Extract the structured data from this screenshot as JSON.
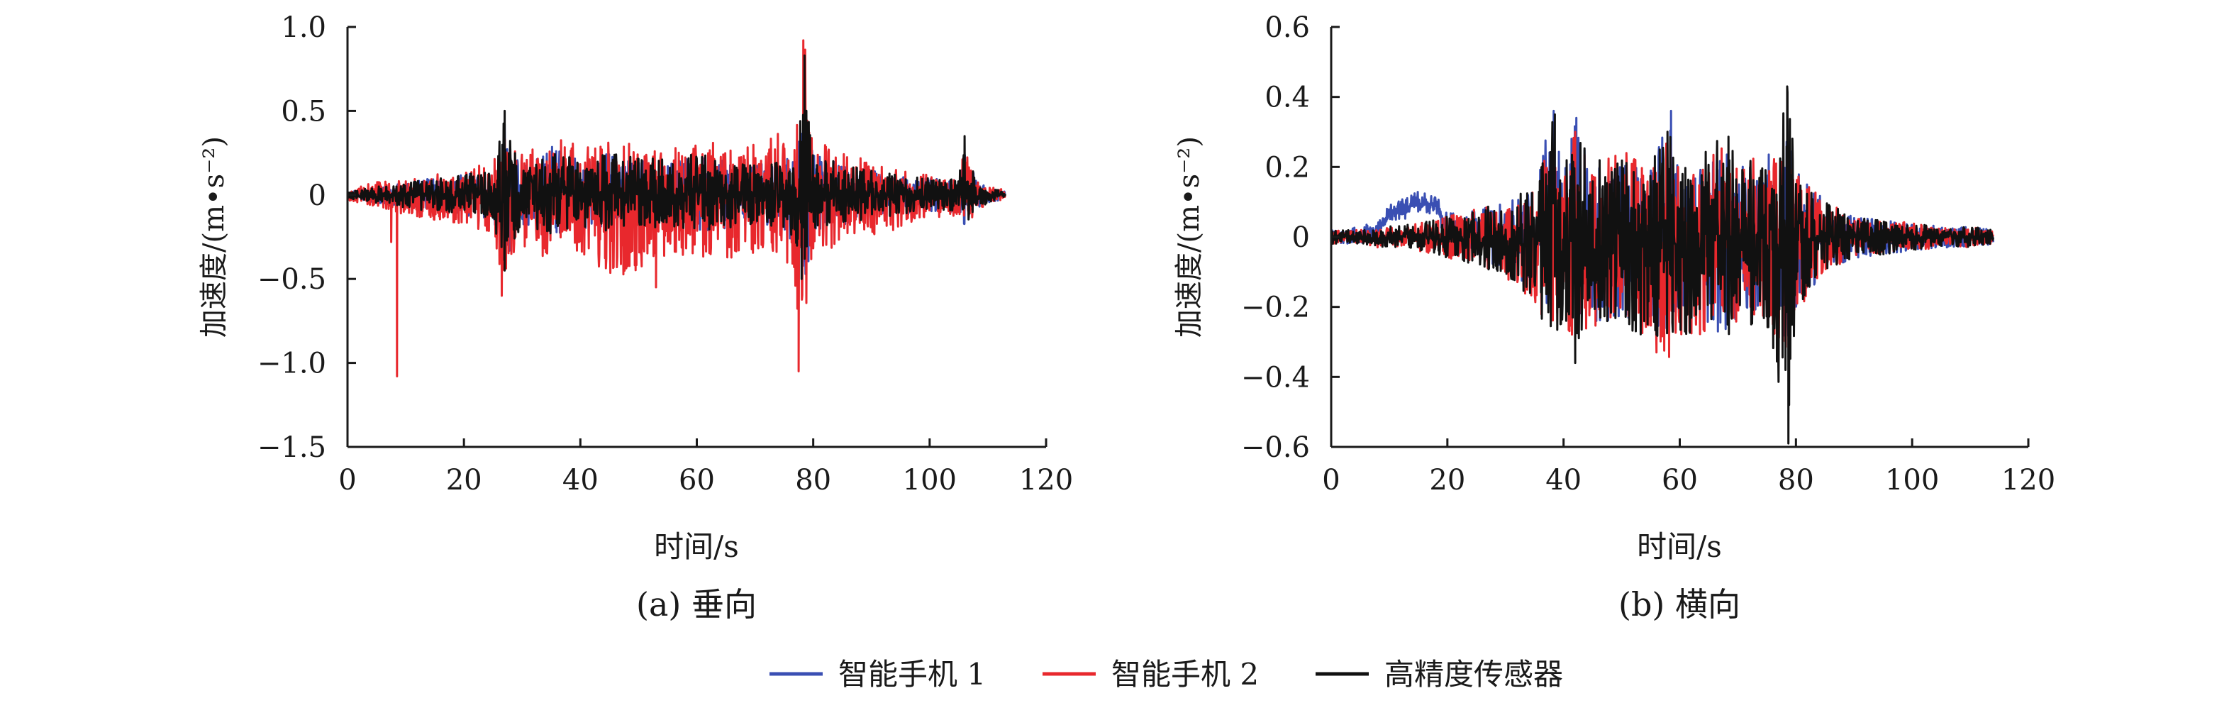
{
  "chart_data": [
    {
      "type": "line",
      "caption": "(a) 垂向",
      "xlabel": "时间/s",
      "ylabel": "加速度/(m•s⁻²)",
      "xlim": [
        0,
        120
      ],
      "ylim": [
        -1.5,
        1.0
      ],
      "xticks": [
        "0",
        "20",
        "40",
        "60",
        "80",
        "100",
        "120"
      ],
      "yticks": [
        "1.0",
        "0.5",
        "0",
        "−0.5",
        "−1.0",
        "−1.5"
      ],
      "grid": false,
      "envelopes": {
        "智能手机 1": {
          "t": [
            0,
            5,
            8,
            10,
            15,
            20,
            25,
            27,
            30,
            35,
            40,
            45,
            50,
            55,
            60,
            65,
            70,
            75,
            77.5,
            78.5,
            80,
            85,
            90,
            95,
            100,
            105,
            106,
            108,
            110,
            113
          ],
          "max": [
            0.02,
            0.05,
            0.06,
            0.08,
            0.1,
            0.12,
            0.15,
            0.4,
            0.18,
            0.3,
            0.2,
            0.25,
            0.2,
            0.22,
            0.25,
            0.2,
            0.18,
            0.2,
            0.3,
            0.6,
            0.25,
            0.2,
            0.15,
            0.12,
            0.1,
            0.1,
            0.3,
            0.08,
            0.05,
            0.02
          ],
          "min": [
            -0.02,
            -0.05,
            -0.06,
            -0.08,
            -0.1,
            -0.12,
            -0.15,
            -0.4,
            -0.18,
            -0.25,
            -0.2,
            -0.22,
            -0.2,
            -0.22,
            -0.22,
            -0.2,
            -0.18,
            -0.2,
            -0.35,
            -0.55,
            -0.22,
            -0.18,
            -0.14,
            -0.12,
            -0.1,
            -0.1,
            -0.2,
            -0.08,
            -0.05,
            -0.02
          ]
        },
        "智能手机 2": {
          "t": [
            0,
            5,
            8,
            10,
            15,
            20,
            25,
            27,
            30,
            35,
            40,
            45,
            50,
            55,
            60,
            65,
            70,
            75,
            77.5,
            78.5,
            80,
            85,
            90,
            95,
            100,
            105,
            106,
            108,
            110,
            113
          ],
          "max": [
            0.03,
            0.08,
            0.08,
            0.1,
            0.12,
            0.15,
            0.2,
            0.45,
            0.25,
            0.35,
            0.3,
            0.32,
            0.3,
            0.3,
            0.35,
            0.3,
            0.3,
            0.4,
            0.5,
            0.92,
            0.35,
            0.25,
            0.2,
            0.15,
            0.12,
            0.1,
            0.3,
            0.08,
            0.05,
            0.03
          ],
          "min": [
            -0.03,
            -0.08,
            -0.1,
            -0.12,
            -0.15,
            -0.18,
            -0.25,
            -0.6,
            -0.3,
            -0.4,
            -0.35,
            -0.5,
            -0.45,
            -0.4,
            -0.4,
            -0.38,
            -0.35,
            -0.45,
            -0.7,
            -0.75,
            -0.35,
            -0.3,
            -0.25,
            -0.2,
            -0.15,
            -0.12,
            -0.2,
            -0.1,
            -0.05,
            -0.03
          ]
        },
        "高精度传感器": {
          "t": [
            0,
            5,
            8,
            10,
            15,
            20,
            25,
            27,
            30,
            35,
            40,
            45,
            50,
            55,
            60,
            65,
            70,
            75,
            77.5,
            78.5,
            80,
            85,
            90,
            95,
            100,
            105,
            106,
            108,
            110,
            113
          ],
          "max": [
            0.02,
            0.05,
            0.06,
            0.08,
            0.1,
            0.12,
            0.15,
            0.5,
            0.18,
            0.28,
            0.2,
            0.25,
            0.22,
            0.22,
            0.25,
            0.2,
            0.18,
            0.2,
            0.3,
            0.83,
            0.25,
            0.18,
            0.15,
            0.12,
            0.1,
            0.1,
            0.35,
            0.08,
            0.05,
            0.02
          ],
          "min": [
            -0.02,
            -0.05,
            -0.06,
            -0.08,
            -0.1,
            -0.12,
            -0.15,
            -0.45,
            -0.18,
            -0.25,
            -0.2,
            -0.22,
            -0.2,
            -0.22,
            -0.22,
            -0.2,
            -0.18,
            -0.2,
            -0.35,
            -0.5,
            -0.22,
            -0.18,
            -0.14,
            -0.12,
            -0.1,
            -0.1,
            -0.22,
            -0.08,
            -0.05,
            -0.02
          ]
        }
      },
      "spikes": {
        "智能手机 2": [
          [
            8.5,
            -1.08
          ],
          [
            7.5,
            -0.28
          ],
          [
            77.5,
            -1.05
          ],
          [
            78.3,
            0.92
          ],
          [
            26.5,
            -0.6
          ],
          [
            53,
            -0.55
          ]
        ],
        "高精度传感器": [
          [
            27,
            0.5
          ],
          [
            78.5,
            0.83
          ],
          [
            106,
            0.35
          ],
          [
            78,
            -0.5
          ],
          [
            27,
            -0.45
          ]
        ],
        "智能手机 1": [
          [
            27,
            0.42
          ]
        ]
      }
    },
    {
      "type": "line",
      "caption": "(b) 横向",
      "xlabel": "时间/s",
      "ylabel": "加速度/(m•s⁻²)",
      "xlim": [
        0,
        120
      ],
      "ylim": [
        -0.6,
        0.6
      ],
      "xticks": [
        "0",
        "20",
        "40",
        "60",
        "80",
        "100",
        "120"
      ],
      "yticks": [
        "0.6",
        "0.4",
        "0.2",
        "0",
        "−0.2",
        "−0.4",
        "−0.6"
      ],
      "grid": false,
      "envelopes": {
        "智能手机 1": {
          "t": [
            0,
            5,
            8,
            10,
            15,
            18,
            20,
            25,
            30,
            35,
            38,
            40,
            42,
            45,
            50,
            55,
            58,
            60,
            65,
            68,
            70,
            75,
            78.5,
            80,
            85,
            90,
            95,
            100,
            105,
            110,
            114
          ],
          "max": [
            0.02,
            0.03,
            0.05,
            0.09,
            0.13,
            0.12,
            0.08,
            0.08,
            0.1,
            0.15,
            0.35,
            0.2,
            0.35,
            0.2,
            0.25,
            0.2,
            0.35,
            0.2,
            0.22,
            0.32,
            0.2,
            0.25,
            0.3,
            0.2,
            0.1,
            0.06,
            0.05,
            0.04,
            0.03,
            0.03,
            0.02
          ],
          "min": [
            -0.02,
            -0.02,
            0.0,
            0.04,
            0.06,
            0.06,
            -0.05,
            -0.05,
            -0.1,
            -0.15,
            -0.25,
            -0.2,
            -0.3,
            -0.25,
            -0.25,
            -0.25,
            -0.3,
            -0.25,
            -0.25,
            -0.3,
            -0.22,
            -0.25,
            -0.3,
            -0.2,
            -0.1,
            -0.06,
            -0.05,
            -0.04,
            -0.03,
            -0.03,
            -0.02
          ]
        },
        "智能手机 2": {
          "t": [
            0,
            5,
            8,
            10,
            15,
            18,
            20,
            25,
            30,
            35,
            38,
            40,
            42,
            45,
            50,
            55,
            58,
            60,
            65,
            68,
            70,
            75,
            78.5,
            80,
            85,
            90,
            95,
            100,
            105,
            110,
            114
          ],
          "max": [
            0.02,
            0.02,
            0.02,
            0.03,
            0.04,
            0.05,
            0.06,
            0.08,
            0.1,
            0.15,
            0.35,
            0.2,
            0.3,
            0.2,
            0.25,
            0.2,
            0.3,
            0.2,
            0.22,
            0.3,
            0.2,
            0.25,
            0.3,
            0.2,
            0.1,
            0.06,
            0.05,
            0.04,
            0.03,
            0.03,
            0.02
          ],
          "min": [
            -0.02,
            -0.02,
            -0.03,
            -0.03,
            -0.04,
            -0.05,
            -0.06,
            -0.08,
            -0.12,
            -0.2,
            -0.3,
            -0.25,
            -0.3,
            -0.28,
            -0.25,
            -0.3,
            -0.35,
            -0.28,
            -0.28,
            -0.3,
            -0.25,
            -0.25,
            -0.35,
            -0.22,
            -0.1,
            -0.06,
            -0.05,
            -0.04,
            -0.03,
            -0.03,
            -0.02
          ]
        },
        "高精度传感器": {
          "t": [
            0,
            5,
            8,
            10,
            15,
            18,
            20,
            25,
            30,
            35,
            38,
            40,
            42,
            45,
            50,
            55,
            58,
            60,
            65,
            68,
            70,
            75,
            78.5,
            80,
            85,
            90,
            95,
            100,
            105,
            110,
            114
          ],
          "max": [
            0.02,
            0.02,
            0.02,
            0.03,
            0.04,
            0.05,
            0.06,
            0.08,
            0.1,
            0.15,
            0.35,
            0.22,
            0.32,
            0.2,
            0.28,
            0.22,
            0.33,
            0.2,
            0.25,
            0.33,
            0.2,
            0.25,
            0.42,
            0.2,
            0.1,
            0.06,
            0.05,
            0.04,
            0.03,
            0.03,
            0.02
          ],
          "min": [
            -0.02,
            -0.02,
            -0.03,
            -0.03,
            -0.04,
            -0.05,
            -0.06,
            -0.08,
            -0.12,
            -0.2,
            -0.3,
            -0.25,
            -0.35,
            -0.28,
            -0.25,
            -0.3,
            -0.33,
            -0.28,
            -0.28,
            -0.3,
            -0.25,
            -0.25,
            -0.58,
            -0.22,
            -0.1,
            -0.06,
            -0.05,
            -0.04,
            -0.03,
            -0.03,
            -0.02
          ]
        }
      },
      "spikes": {
        "高精度传感器": [
          [
            78.5,
            0.43
          ],
          [
            78.7,
            -0.59
          ],
          [
            42,
            -0.36
          ],
          [
            38.5,
            0.35
          ],
          [
            78.2,
            -0.38
          ]
        ],
        "智能手机 2": [
          [
            56,
            -0.33
          ],
          [
            42,
            0.3
          ]
        ],
        "智能手机 1": [
          [
            38.3,
            0.36
          ],
          [
            42.2,
            0.34
          ],
          [
            58.5,
            0.36
          ]
        ]
      }
    }
  ],
  "legend": [
    {
      "label": "智能手机 1",
      "color": "#3a4fb3"
    },
    {
      "label": "智能手机 2",
      "color": "#e8282d"
    },
    {
      "label": "高精度传感器",
      "color": "#111111"
    }
  ]
}
